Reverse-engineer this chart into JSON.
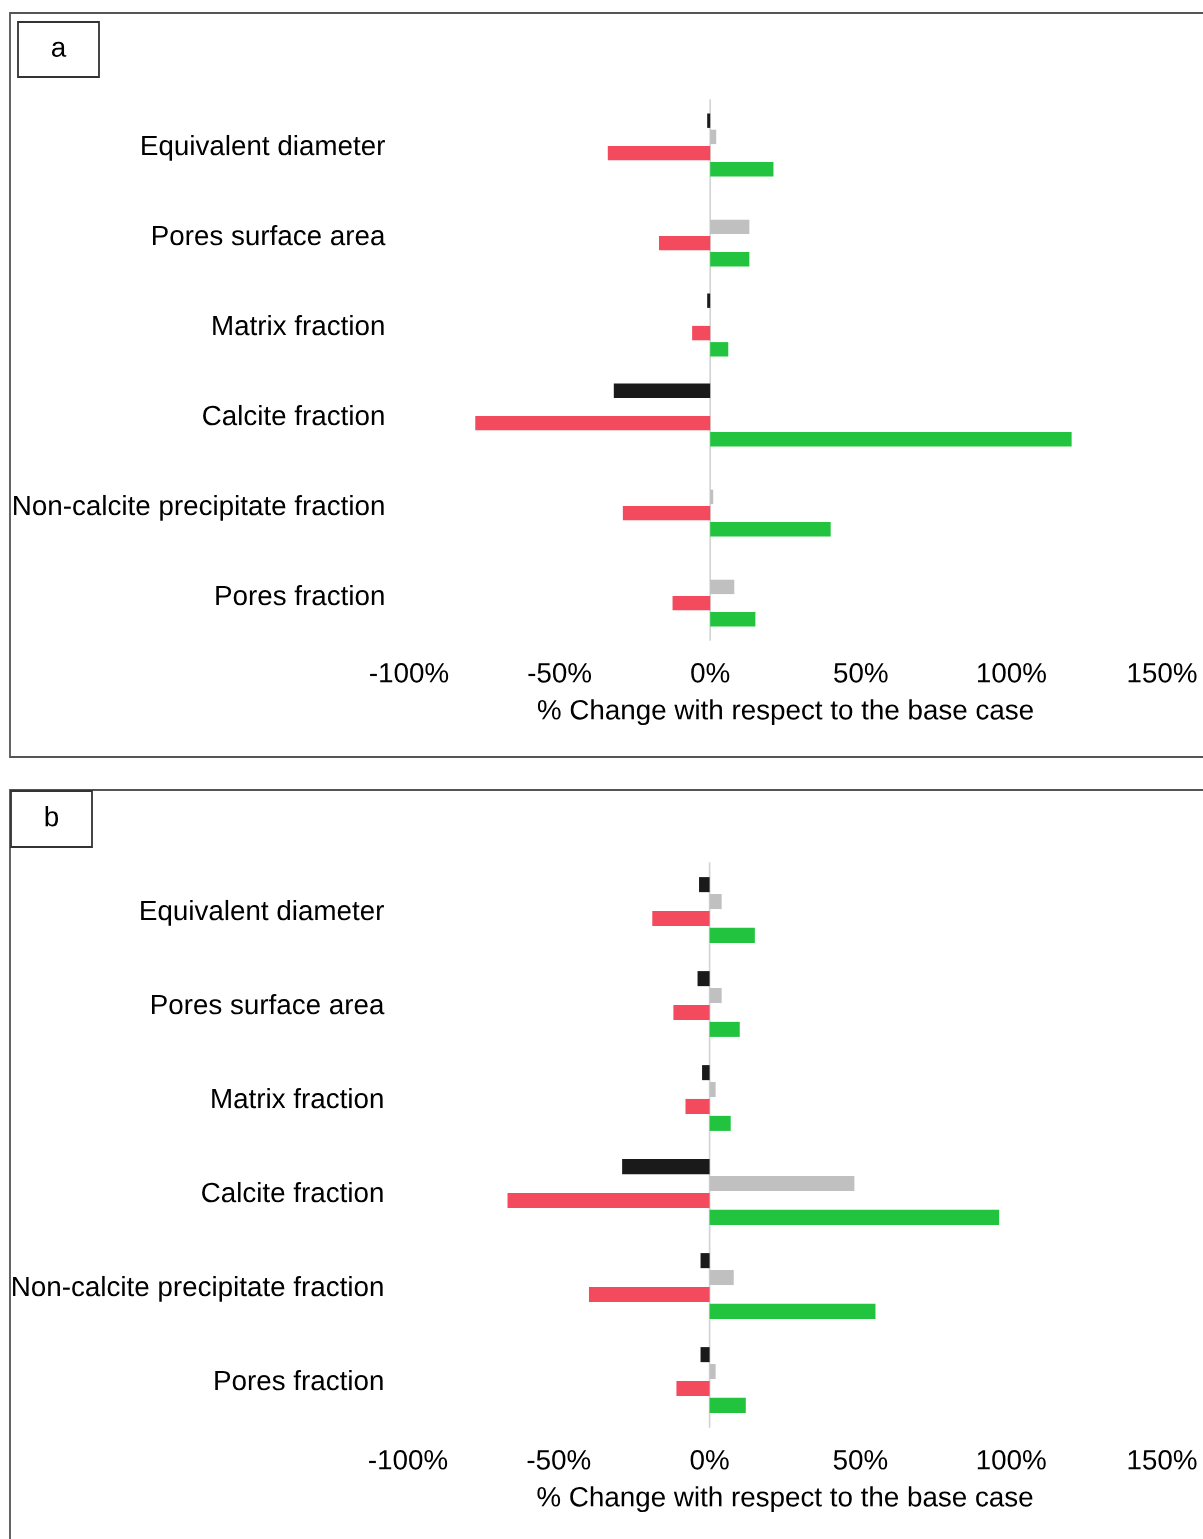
{
  "chart_data": [
    {
      "type": "bar",
      "orientation": "horizontal",
      "title": "a",
      "xlabel": "% Change with respect to the base case",
      "categories": [
        "Equivalent diameter",
        "Pores surface area",
        "Matrix fraction",
        "Calcite fraction",
        "Non-calcite precipitate fraction",
        "Pores fraction"
      ],
      "series": [
        {
          "color": "#1a1a1a",
          "values": [
            -1,
            0,
            -1,
            -32,
            0,
            0
          ]
        },
        {
          "color": "#c0c0c0",
          "values": [
            2,
            13,
            0,
            0,
            1,
            8
          ]
        },
        {
          "color": "#f44a5d",
          "values": [
            -34,
            -17,
            -6,
            -78,
            -29,
            -12.5
          ]
        },
        {
          "color": "#22c33f",
          "values": [
            21,
            13,
            6,
            120,
            40,
            15
          ]
        }
      ],
      "xlim": [
        -100,
        150
      ],
      "xticks": [
        {
          "value": -100,
          "label": "-100%"
        },
        {
          "value": -50,
          "label": "-50%"
        },
        {
          "value": 0,
          "label": "0%"
        },
        {
          "value": 50,
          "label": "50%"
        },
        {
          "value": 100,
          "label": "100%"
        },
        {
          "value": 150,
          "label": "150%"
        }
      ]
    },
    {
      "type": "bar",
      "orientation": "horizontal",
      "title": "b",
      "xlabel": "% Change with respect to the base case",
      "categories": [
        "Equivalent diameter",
        "Pores surface area",
        "Matrix fraction",
        "Calcite fraction",
        "Non-calcite precipitate fraction",
        "Pores fraction"
      ],
      "series": [
        {
          "color": "#1a1a1a",
          "values": [
            -3.5,
            -4,
            -2.5,
            -29,
            -3,
            -3
          ]
        },
        {
          "color": "#c0c0c0",
          "values": [
            4,
            4,
            2,
            48,
            8,
            2
          ]
        },
        {
          "color": "#f44a5d",
          "values": [
            -19,
            -12,
            -8,
            -67,
            -40,
            -11
          ]
        },
        {
          "color": "#22c33f",
          "values": [
            15,
            10,
            7,
            96,
            55,
            12
          ]
        }
      ],
      "xlim": [
        -100,
        150
      ],
      "xticks": [
        {
          "value": -100,
          "label": "-100%"
        },
        {
          "value": -50,
          "label": "-50%"
        },
        {
          "value": 0,
          "label": "0%"
        },
        {
          "value": 50,
          "label": "50%"
        },
        {
          "value": 100,
          "label": "100%"
        },
        {
          "value": 150,
          "label": "150%"
        }
      ]
    }
  ]
}
